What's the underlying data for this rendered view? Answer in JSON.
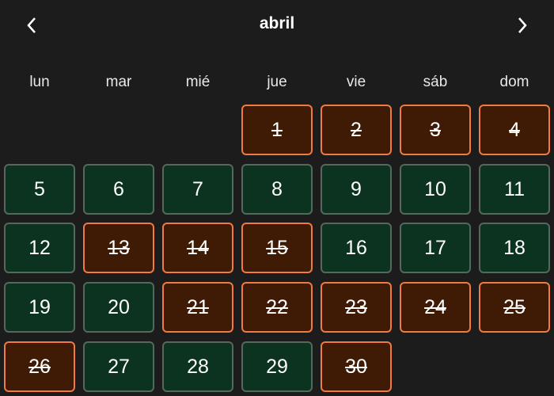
{
  "header": {
    "title": "abril",
    "prev_icon": "chevron-left-icon",
    "next_icon": "chevron-right-icon"
  },
  "weekdays": [
    "lun",
    "mar",
    "mié",
    "jue",
    "vie",
    "sáb",
    "dom"
  ],
  "colors": {
    "background": "#1c1c1c",
    "available_bg": "#0b3320",
    "available_border": "#56675d",
    "unavailable_bg": "#3f1a05",
    "unavailable_border": "#f07a42"
  },
  "first_weekday_index": 3,
  "days": [
    {
      "day": "1",
      "unavailable": true
    },
    {
      "day": "2",
      "unavailable": true
    },
    {
      "day": "3",
      "unavailable": true
    },
    {
      "day": "4",
      "unavailable": true
    },
    {
      "day": "5",
      "unavailable": false
    },
    {
      "day": "6",
      "unavailable": false
    },
    {
      "day": "7",
      "unavailable": false
    },
    {
      "day": "8",
      "unavailable": false
    },
    {
      "day": "9",
      "unavailable": false
    },
    {
      "day": "10",
      "unavailable": false
    },
    {
      "day": "11",
      "unavailable": false
    },
    {
      "day": "12",
      "unavailable": false
    },
    {
      "day": "13",
      "unavailable": true
    },
    {
      "day": "14",
      "unavailable": true
    },
    {
      "day": "15",
      "unavailable": true
    },
    {
      "day": "16",
      "unavailable": false
    },
    {
      "day": "17",
      "unavailable": false
    },
    {
      "day": "18",
      "unavailable": false
    },
    {
      "day": "19",
      "unavailable": false
    },
    {
      "day": "20",
      "unavailable": false
    },
    {
      "day": "21",
      "unavailable": true
    },
    {
      "day": "22",
      "unavailable": true
    },
    {
      "day": "23",
      "unavailable": true
    },
    {
      "day": "24",
      "unavailable": true
    },
    {
      "day": "25",
      "unavailable": true
    },
    {
      "day": "26",
      "unavailable": true
    },
    {
      "day": "27",
      "unavailable": false
    },
    {
      "day": "28",
      "unavailable": false
    },
    {
      "day": "29",
      "unavailable": false
    },
    {
      "day": "30",
      "unavailable": true
    }
  ]
}
